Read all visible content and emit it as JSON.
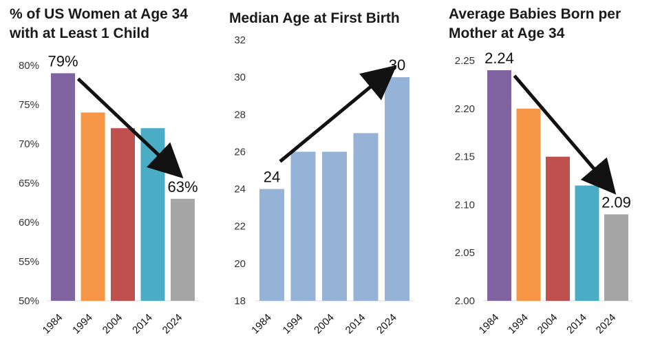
{
  "chart_data": [
    {
      "type": "bar",
      "title_lines": [
        "% of US Women at Age 34",
        "with at Least 1 Child"
      ],
      "categories": [
        "1984",
        "1994",
        "2004",
        "2014",
        "2024"
      ],
      "values": [
        79,
        74,
        72,
        72,
        63
      ],
      "colors": [
        "#8064A2",
        "#F79646",
        "#C0504D",
        "#4BACC6",
        "#A6A6A6"
      ],
      "ylim": [
        50,
        80
      ],
      "yticks": [
        50,
        55,
        60,
        65,
        70,
        75,
        80
      ],
      "tick_labels": [
        "50%",
        "55%",
        "60%",
        "65%",
        "70%",
        "75%",
        "80%"
      ],
      "annotations": [
        {
          "category_index": 0,
          "text": "79%"
        },
        {
          "category_index": 4,
          "text": "63%"
        }
      ],
      "arrow": {
        "from_index": 0,
        "to_index": 4,
        "direction": "down"
      }
    },
    {
      "type": "bar",
      "title_lines": [
        "Median Age at First Birth"
      ],
      "categories": [
        "1984",
        "1994",
        "2004",
        "2014",
        "2024"
      ],
      "values": [
        24,
        26,
        26,
        27,
        30
      ],
      "colors": [
        "#95B3D7",
        "#95B3D7",
        "#95B3D7",
        "#95B3D7",
        "#95B3D7"
      ],
      "ylim": [
        18,
        32
      ],
      "yticks": [
        18,
        20,
        22,
        24,
        26,
        28,
        30,
        32
      ],
      "tick_labels": [
        "18",
        "20",
        "22",
        "24",
        "26",
        "28",
        "30",
        "32"
      ],
      "annotations": [
        {
          "category_index": 0,
          "text": "24"
        },
        {
          "category_index": 4,
          "text": "30"
        }
      ],
      "arrow": {
        "from_index": 0,
        "to_index": 4,
        "direction": "up"
      }
    },
    {
      "type": "bar",
      "title_lines": [
        "Average Babies Born per",
        "Mother at Age 34"
      ],
      "categories": [
        "1984",
        "1994",
        "2004",
        "2014",
        "2024"
      ],
      "values": [
        2.24,
        2.2,
        2.15,
        2.12,
        2.09
      ],
      "colors": [
        "#8064A2",
        "#F79646",
        "#C0504D",
        "#4BACC6",
        "#A6A6A6"
      ],
      "ylim": [
        2.0,
        2.25
      ],
      "yticks": [
        2.0,
        2.05,
        2.1,
        2.15,
        2.2,
        2.25
      ],
      "tick_labels": [
        "2.00",
        "2.05",
        "2.10",
        "2.15",
        "2.20",
        "2.25"
      ],
      "annotations": [
        {
          "category_index": 0,
          "text": "2.24"
        },
        {
          "category_index": 4,
          "text": "2.09"
        }
      ],
      "arrow": {
        "from_index": 0,
        "to_index": 4,
        "direction": "down"
      }
    }
  ]
}
